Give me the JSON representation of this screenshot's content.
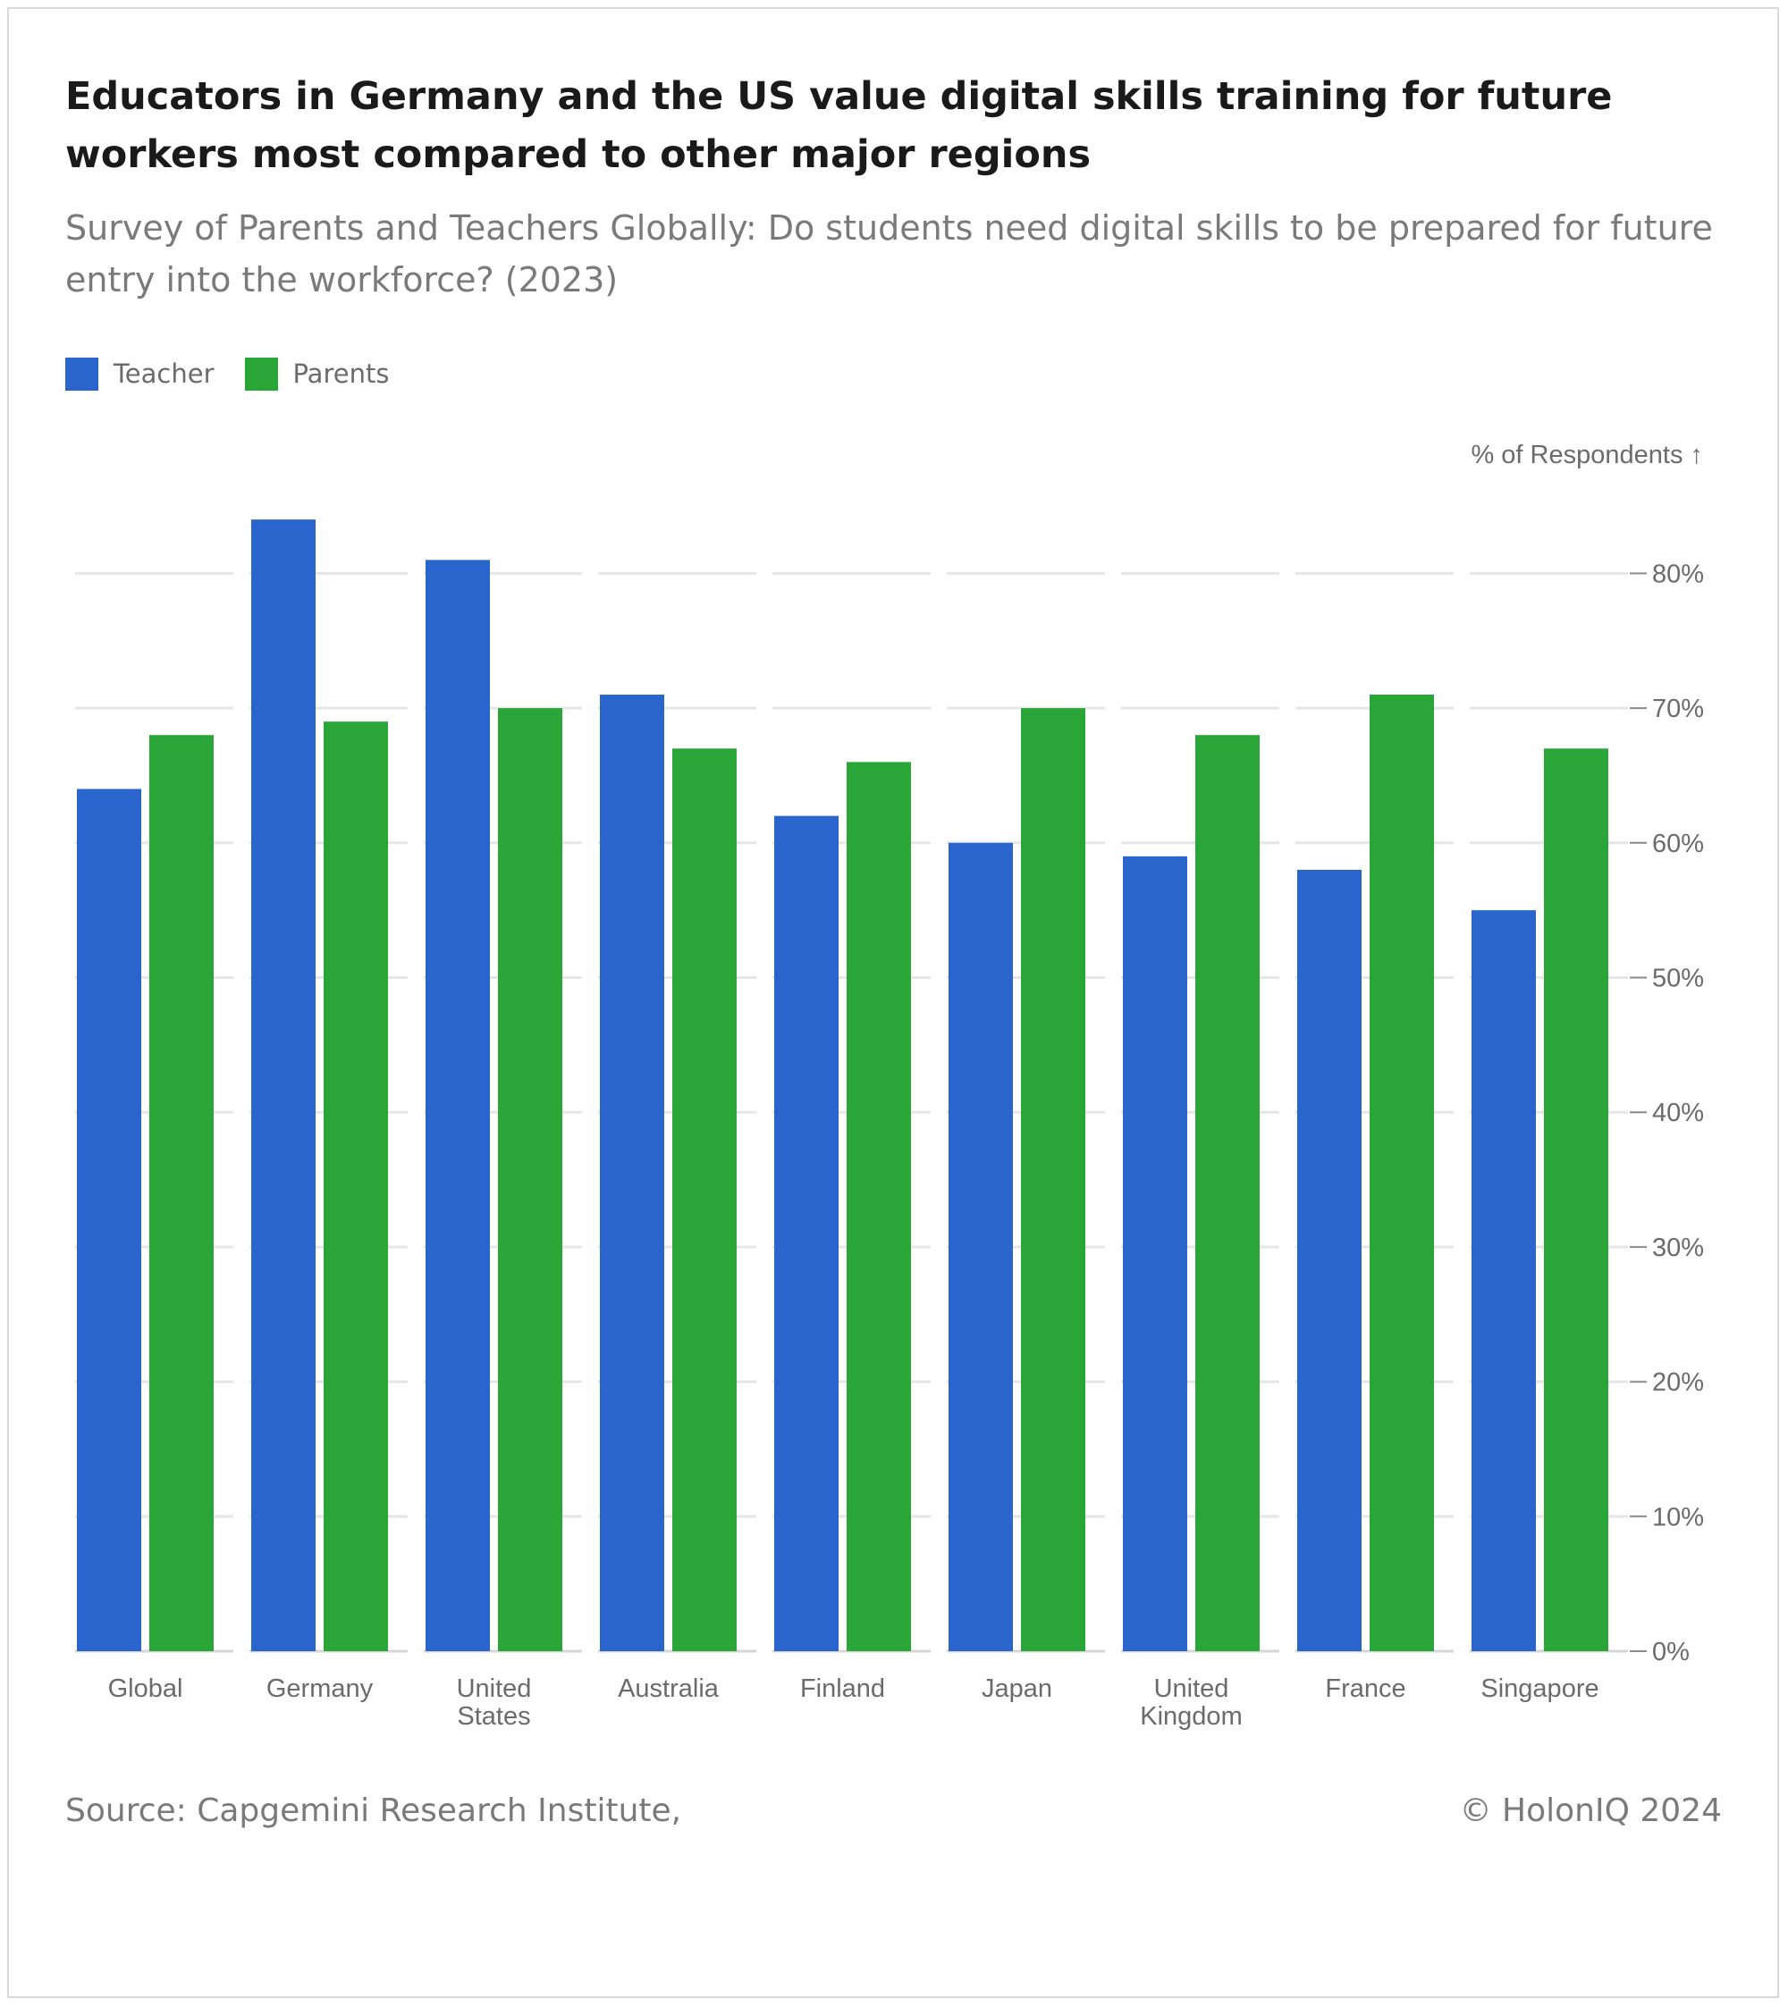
{
  "title": "Educators in Germany and the US value digital skills training for future workers most compared to other major regions",
  "subtitle": "Survey of Parents and Teachers Globally: Do students need digital skills to be prepared for future entry into the workforce? (2023)",
  "source": "Source: Capgemini Research Institute,",
  "copyright": "© HolonIQ 2024",
  "colors": {
    "teacher": "#2a65cd",
    "parents": "#2aa537",
    "grid": "#e6e6e6",
    "axis_text": "#6b6b6b"
  },
  "chart_data": {
    "type": "bar",
    "ylabel": "% of Respondents ↑",
    "ylim": [
      0,
      85
    ],
    "y_axis_position": "right",
    "y_ticks": [
      "0%",
      "10%",
      "20%",
      "30%",
      "40%",
      "50%",
      "60%",
      "70%",
      "80%"
    ],
    "grid": true,
    "legend_position": "top-left",
    "categories": [
      [
        "Global"
      ],
      [
        "Germany"
      ],
      [
        "United",
        "States"
      ],
      [
        "Australia"
      ],
      [
        "Finland"
      ],
      [
        "Japan"
      ],
      [
        "United",
        "Kingdom"
      ],
      [
        "France"
      ],
      [
        "Singapore"
      ]
    ],
    "series": [
      {
        "name": "Teacher",
        "values": [
          64,
          84,
          81,
          71,
          62,
          60,
          59,
          58,
          55
        ]
      },
      {
        "name": "Parents",
        "values": [
          68,
          69,
          70,
          67,
          66,
          70,
          68,
          71,
          67
        ]
      }
    ]
  }
}
